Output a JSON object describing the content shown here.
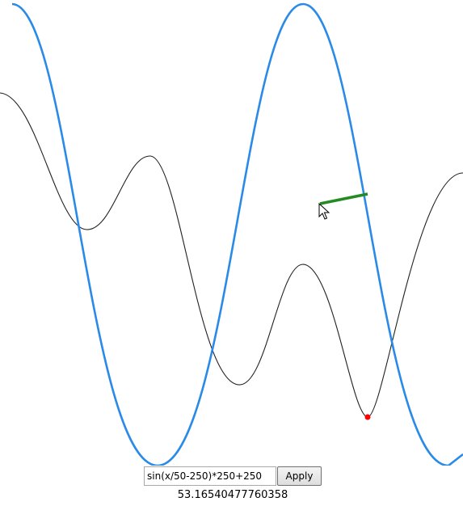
{
  "function_input": {
    "value": "sin(x/50-250)*250+250",
    "placeholder": ""
  },
  "apply_button": {
    "label": "Apply"
  },
  "result_value": "53.16540477760358",
  "colors": {
    "function_curve": "#2a8ae8",
    "secondary_curve": "#222222",
    "tangent_segment": "#228b22",
    "marker_point": "#ff0000"
  },
  "icons": {
    "cursor": "mouse-pointer-icon"
  }
}
